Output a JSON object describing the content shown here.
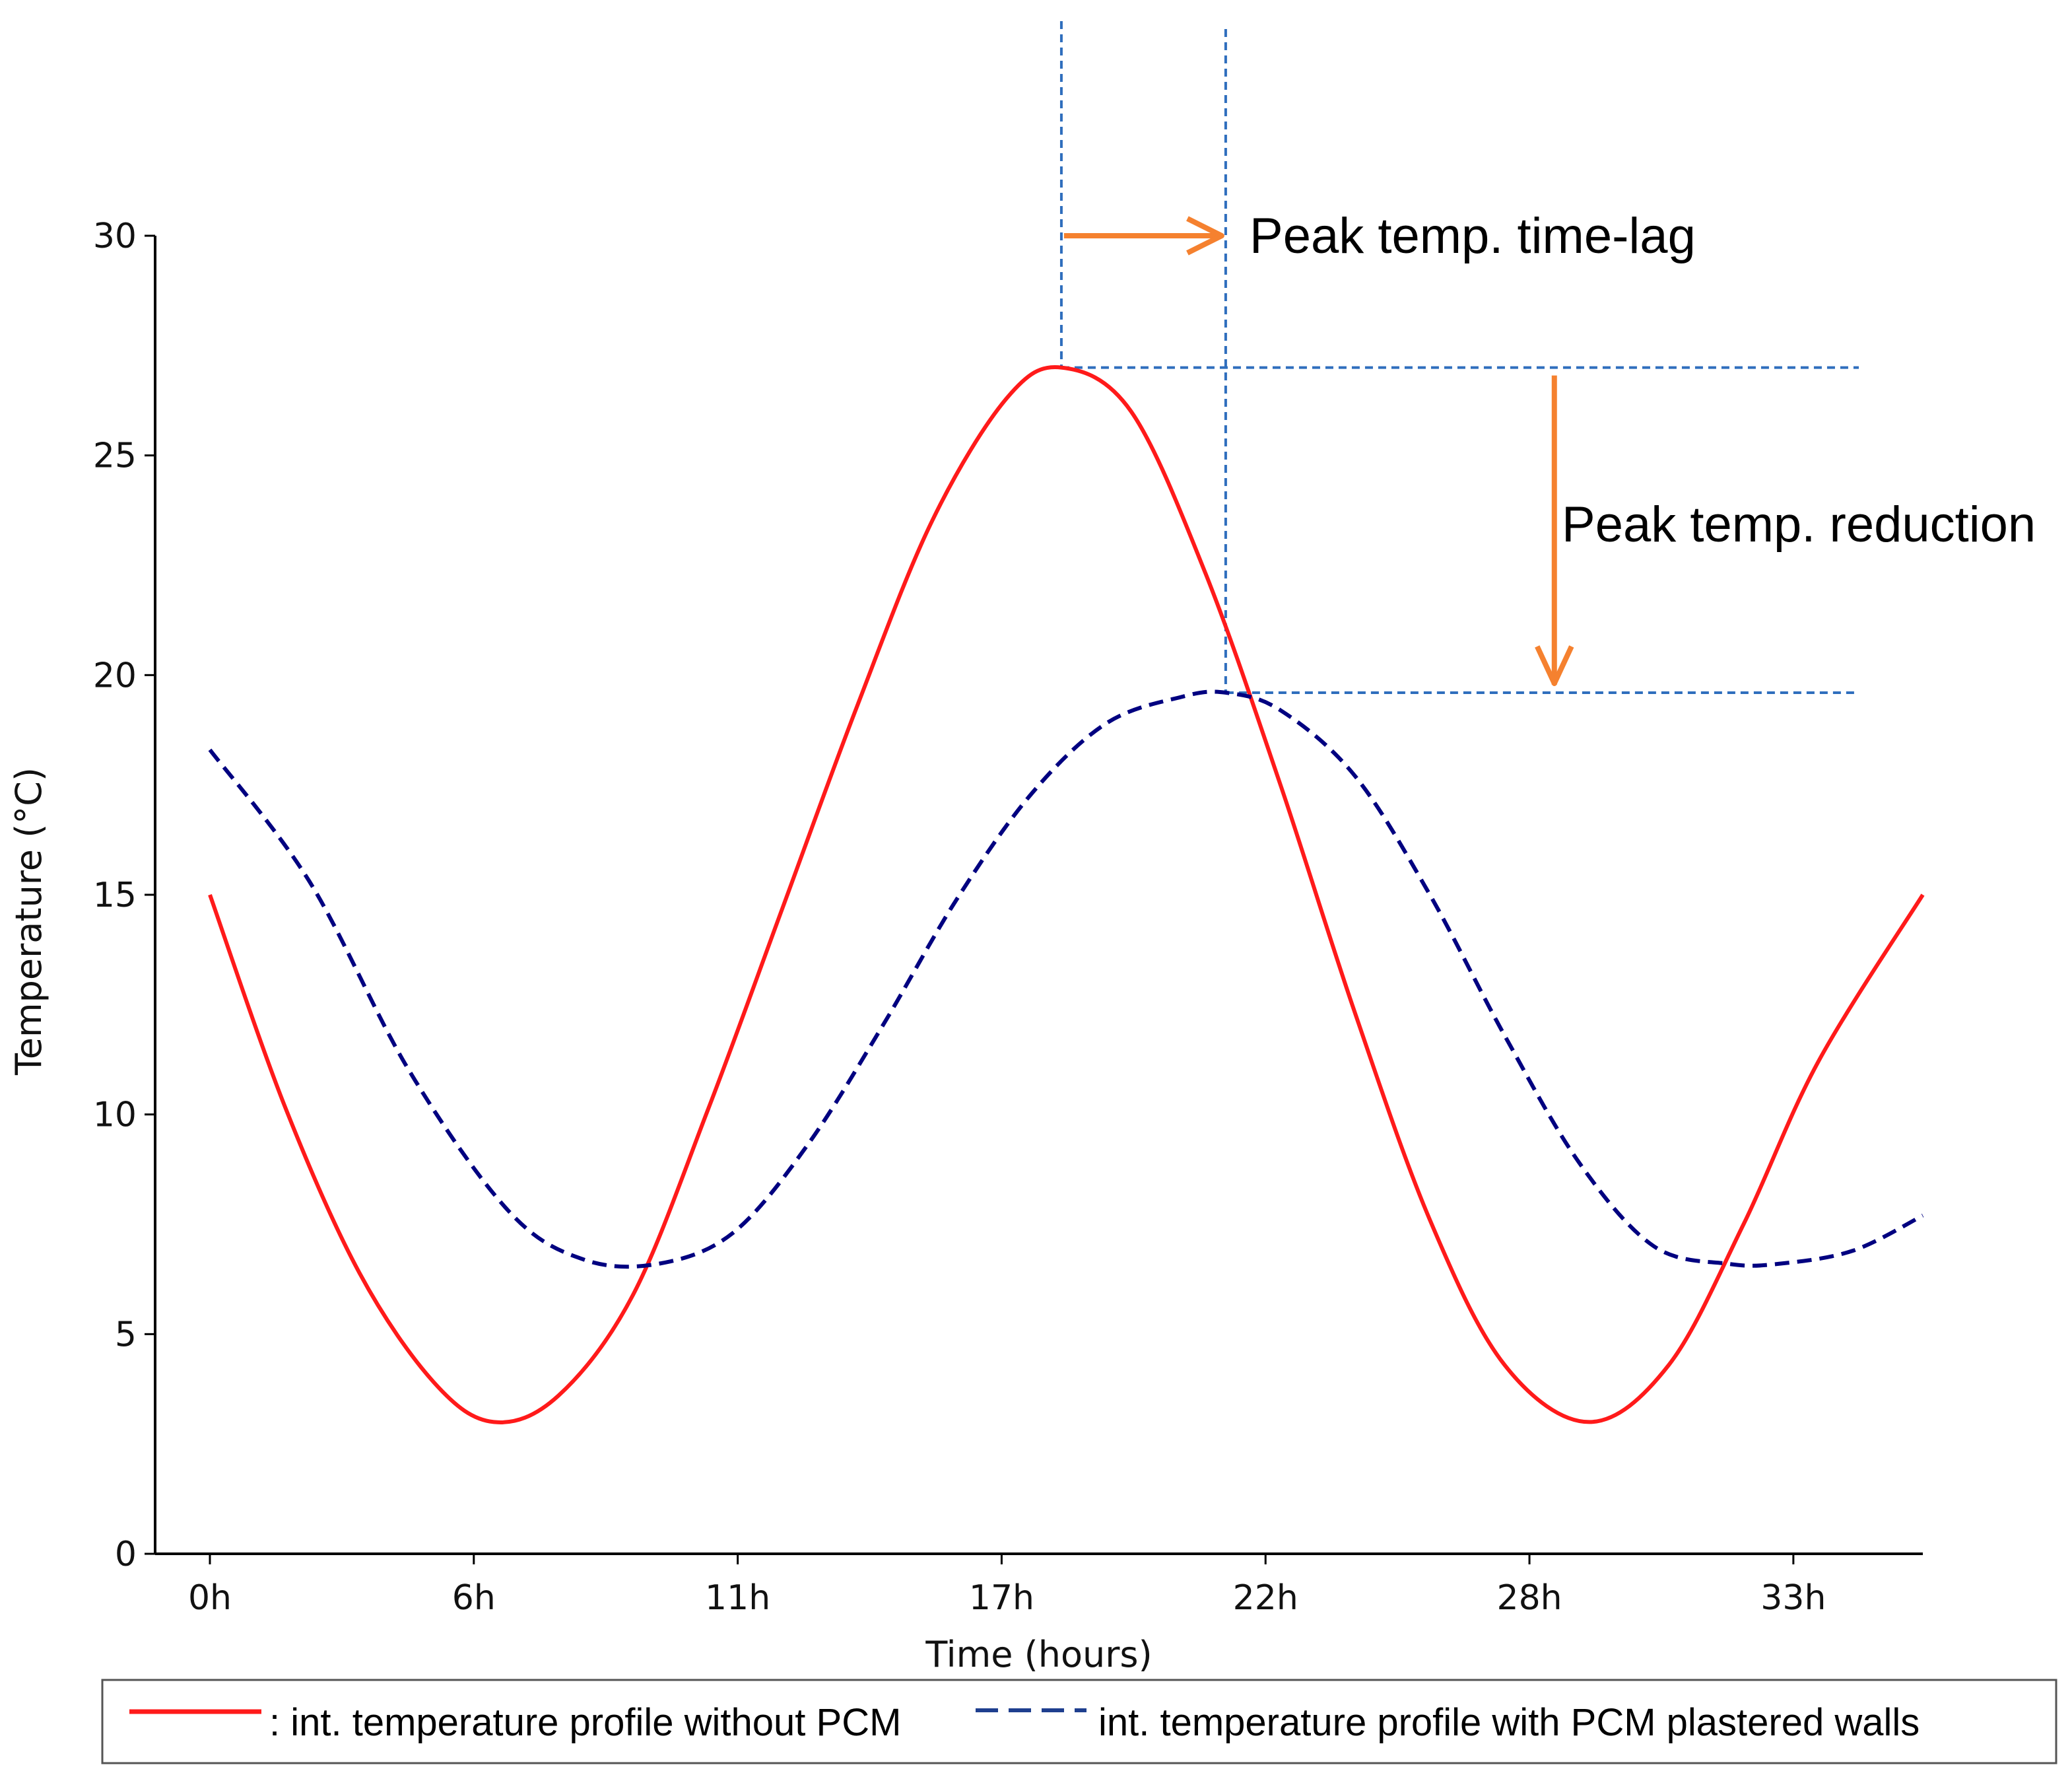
{
  "chart_data": {
    "type": "line",
    "title": "",
    "xlabel": "Time (hours)",
    "ylabel": "Temperature ($^\\circ$C)",
    "ylabel_display": "Temperature (°C)",
    "xlim": [
      -1.1,
      34.4
    ],
    "ylim": [
      0,
      30
    ],
    "xticks": [
      {
        "value": 0,
        "label": "0h"
      },
      {
        "value": 5.3,
        "label": "6h"
      },
      {
        "value": 10.6,
        "label": "11h"
      },
      {
        "value": 15.9,
        "label": "17h"
      },
      {
        "value": 21.2,
        "label": "22h"
      },
      {
        "value": 26.5,
        "label": "28h"
      },
      {
        "value": 31.8,
        "label": "33h"
      }
    ],
    "yticks": [
      {
        "value": 0,
        "label": "0"
      },
      {
        "value": 5,
        "label": "5"
      },
      {
        "value": 10,
        "label": "10"
      },
      {
        "value": 15,
        "label": "15"
      },
      {
        "value": 20,
        "label": "20"
      },
      {
        "value": 25,
        "label": "25"
      },
      {
        "value": 30,
        "label": "30"
      }
    ],
    "series": [
      {
        "name": "int. temperature profile without PCM",
        "color": "#ff1a1a",
        "style": "solid",
        "x": [
          0,
          1.5,
          3,
          4.5,
          5.7,
          7,
          8.5,
          10,
          11.5,
          13,
          14.5,
          16,
          17.1,
          18.5,
          20,
          21.5,
          23,
          24.5,
          26,
          27.7,
          29.3,
          30.8,
          32.3,
          34.4
        ],
        "y": [
          15,
          10.2,
          6.4,
          3.9,
          3.0,
          3.6,
          5.9,
          10.1,
          14.7,
          19.3,
          23.5,
          26.3,
          27.0,
          26.0,
          22.3,
          17.5,
          12.3,
          7.6,
          4.3,
          3.0,
          4.3,
          7.5,
          11.2,
          15.0
        ]
      },
      {
        "name": "int. temperature profile with PCM plastered walls",
        "color": "#000080",
        "style": "dashed",
        "x": [
          0,
          2,
          4,
          6,
          7.5,
          9,
          10.5,
          12,
          13.5,
          15,
          16.5,
          18,
          19.5,
          20.4,
          21.5,
          23,
          24.5,
          26,
          27.5,
          29,
          30.5,
          31.5,
          33,
          34.4
        ],
        "y": [
          18.3,
          15.3,
          11.0,
          7.8,
          6.7,
          6.6,
          7.3,
          9.3,
          12.0,
          14.9,
          17.3,
          18.9,
          19.5,
          19.6,
          19.2,
          17.7,
          15.0,
          11.8,
          8.9,
          7.0,
          6.6,
          6.6,
          6.9,
          7.7
        ]
      }
    ],
    "annotations": {
      "time_lag": {
        "label": "Peak temp. time-lag",
        "from_x": 17.1,
        "to_x": 20.4,
        "at_y": 30
      },
      "reduction": {
        "label": "Peak temp. reduction",
        "from_y": 27.0,
        "to_y": 19.6,
        "at_x": 27.0
      },
      "guide_color": "#2f6ebd",
      "arrow_color": "#f5812f"
    },
    "legend": {
      "placement": "bottom",
      "entries": [
        {
          "label": ": int. temperature profile without PCM",
          "color": "#ff1a1a",
          "style": "solid"
        },
        {
          "label": "int. temperature profile with PCM plastered walls",
          "color": "#1f3f8f",
          "style": "dashed"
        }
      ]
    }
  }
}
